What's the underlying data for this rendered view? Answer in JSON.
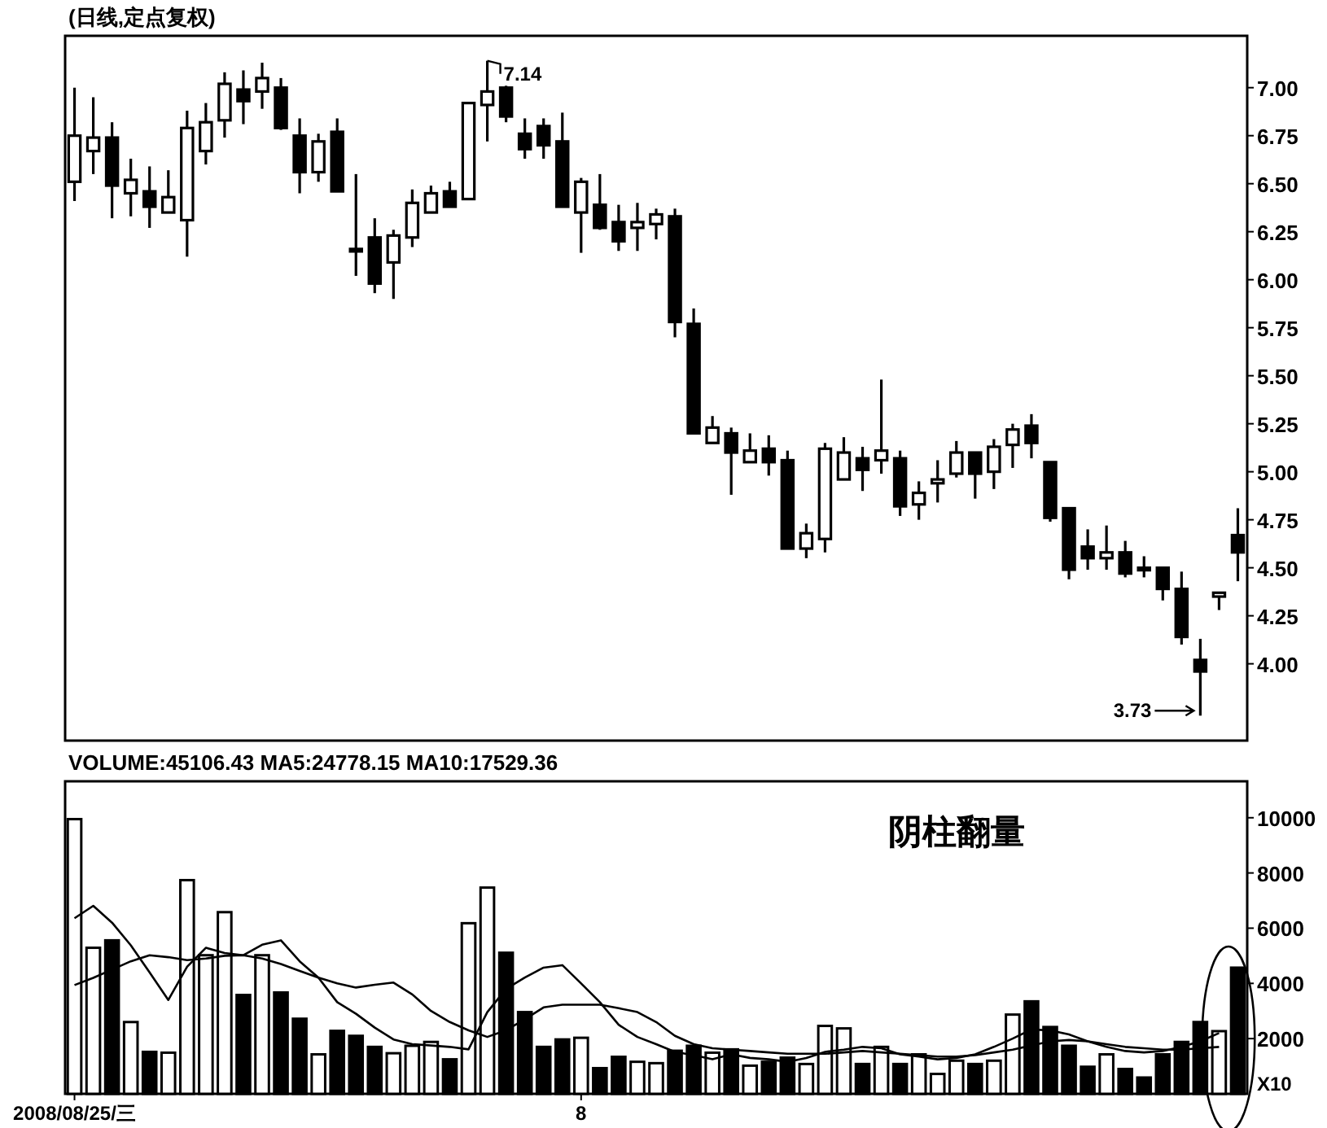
{
  "chart_data": [
    {
      "type": "candlestick",
      "title": "(日线,定点复权)",
      "categories": [
        null,
        null,
        null,
        null,
        null,
        null,
        null,
        null,
        null,
        null,
        null,
        null,
        null,
        null,
        null,
        null,
        null,
        null,
        null,
        null,
        null,
        null,
        null,
        null,
        null,
        null,
        null,
        null,
        null,
        null,
        null,
        null,
        null,
        null,
        null,
        null,
        null,
        null,
        null,
        null,
        null,
        null,
        null,
        null,
        null,
        null,
        null,
        null,
        null,
        null,
        null,
        null,
        null,
        null,
        null,
        null,
        null,
        null,
        null,
        null,
        null,
        null,
        null
      ],
      "ohlc": [
        [
          6.51,
          7.0,
          6.41,
          6.75
        ],
        [
          6.67,
          6.95,
          6.55,
          6.74
        ],
        [
          6.74,
          6.82,
          6.32,
          6.49
        ],
        [
          6.45,
          6.63,
          6.33,
          6.52
        ],
        [
          6.46,
          6.59,
          6.27,
          6.38
        ],
        [
          6.35,
          6.57,
          6.35,
          6.43
        ],
        [
          6.31,
          6.88,
          6.12,
          6.79
        ],
        [
          6.67,
          6.92,
          6.6,
          6.82
        ],
        [
          6.83,
          7.08,
          6.74,
          7.02
        ],
        [
          6.99,
          7.09,
          6.81,
          6.93
        ],
        [
          6.98,
          7.13,
          6.89,
          7.05
        ],
        [
          7.0,
          7.05,
          6.78,
          6.79
        ],
        [
          6.75,
          6.84,
          6.45,
          6.56
        ],
        [
          6.56,
          6.76,
          6.51,
          6.72
        ],
        [
          6.77,
          6.84,
          6.46,
          6.46
        ],
        [
          6.16,
          6.55,
          6.02,
          6.15
        ],
        [
          6.22,
          6.32,
          5.93,
          5.98
        ],
        [
          6.09,
          6.26,
          5.9,
          6.23
        ],
        [
          6.22,
          6.47,
          6.17,
          6.4
        ],
        [
          6.35,
          6.49,
          6.35,
          6.45
        ],
        [
          6.46,
          6.51,
          6.38,
          6.38
        ],
        [
          6.42,
          6.92,
          6.42,
          6.92
        ],
        [
          6.91,
          7.14,
          6.72,
          6.98
        ],
        [
          7.0,
          7.01,
          6.82,
          6.85
        ],
        [
          6.76,
          6.84,
          6.63,
          6.68
        ],
        [
          6.8,
          6.84,
          6.63,
          6.7
        ],
        [
          6.72,
          6.87,
          6.38,
          6.38
        ],
        [
          6.35,
          6.53,
          6.14,
          6.51
        ],
        [
          6.39,
          6.55,
          6.26,
          6.27
        ],
        [
          6.3,
          6.39,
          6.15,
          6.2
        ],
        [
          6.27,
          6.4,
          6.15,
          6.3
        ],
        [
          6.29,
          6.37,
          6.21,
          6.34
        ],
        [
          6.33,
          6.37,
          5.7,
          5.78
        ],
        [
          5.77,
          5.85,
          5.2,
          5.2
        ],
        [
          5.15,
          5.29,
          5.15,
          5.23
        ],
        [
          5.2,
          5.23,
          4.88,
          5.1
        ],
        [
          5.05,
          5.2,
          5.05,
          5.11
        ],
        [
          5.12,
          5.19,
          4.98,
          5.05
        ],
        [
          5.06,
          5.11,
          4.6,
          4.6
        ],
        [
          4.6,
          4.73,
          4.55,
          4.68
        ],
        [
          4.65,
          5.15,
          4.58,
          5.12
        ],
        [
          4.96,
          5.18,
          4.96,
          5.1
        ],
        [
          5.07,
          5.13,
          4.9,
          5.01
        ],
        [
          5.06,
          5.48,
          4.99,
          5.11
        ],
        [
          5.07,
          5.11,
          4.77,
          4.82
        ],
        [
          4.83,
          4.95,
          4.75,
          4.89
        ],
        [
          4.94,
          5.06,
          4.84,
          4.96
        ],
        [
          4.99,
          5.16,
          4.97,
          5.1
        ],
        [
          5.1,
          5.1,
          4.86,
          4.99
        ],
        [
          5.0,
          5.17,
          4.91,
          5.13
        ],
        [
          5.14,
          5.25,
          5.02,
          5.22
        ],
        [
          5.24,
          5.3,
          5.07,
          5.15
        ],
        [
          5.05,
          5.05,
          4.74,
          4.76
        ],
        [
          4.81,
          4.81,
          4.44,
          4.49
        ],
        [
          4.61,
          4.7,
          4.49,
          4.55
        ],
        [
          4.55,
          4.72,
          4.49,
          4.58
        ],
        [
          4.58,
          4.64,
          4.45,
          4.47
        ],
        [
          4.5,
          4.56,
          4.45,
          4.49
        ],
        [
          4.5,
          4.5,
          4.33,
          4.39
        ],
        [
          4.39,
          4.48,
          4.1,
          4.14
        ],
        [
          4.02,
          4.13,
          3.73,
          3.96
        ],
        [
          4.35,
          4.37,
          4.28,
          4.37
        ],
        [
          4.67,
          4.81,
          4.43,
          4.58
        ]
      ],
      "ylim": [
        3.6,
        7.27
      ],
      "yticks": [
        {
          "value": 4,
          "label": "4.00"
        },
        {
          "value": 4.25,
          "label": "4.25"
        },
        {
          "value": 4.5,
          "label": "4.50"
        },
        {
          "value": 4.75,
          "label": "4.75"
        },
        {
          "value": 5,
          "label": "5.00"
        },
        {
          "value": 5.25,
          "label": "5.25"
        },
        {
          "value": 5.5,
          "label": "5.50"
        },
        {
          "value": 5.75,
          "label": "5.75"
        },
        {
          "value": 6,
          "label": "6.00"
        },
        {
          "value": 6.25,
          "label": "6.25"
        },
        {
          "value": 6.5,
          "label": "6.50"
        },
        {
          "value": 6.75,
          "label": "6.75"
        },
        {
          "value": 7,
          "label": "7.00"
        }
      ],
      "tick_labels": "y",
      "annotations": [
        "7.14",
        "3.73"
      ]
    },
    {
      "type": "bar",
      "title": "VOLUME:45106.43 MA5:24778.15 MA10:17529.36",
      "categories": [
        "2008/08/25/三",
        null,
        null,
        null,
        null,
        null,
        null,
        null,
        null,
        null,
        null,
        null,
        null,
        null,
        null,
        null,
        null,
        null,
        null,
        null,
        null,
        null,
        null,
        null,
        null,
        null,
        null,
        "8",
        null,
        null,
        null,
        null,
        null,
        null,
        null,
        null,
        null,
        null,
        null,
        null,
        null,
        null,
        null,
        null,
        null,
        null,
        null,
        null,
        null,
        null,
        null,
        null,
        null,
        null,
        null,
        null,
        null,
        null,
        null,
        null,
        null,
        null,
        null
      ],
      "series": [
        {
          "type": "bar",
          "values": [
            9950,
            5290,
            5560,
            2600,
            1520,
            1490,
            7740,
            5020,
            6580,
            3580,
            5020,
            3670,
            2720,
            1430,
            2280,
            2100,
            1700,
            1470,
            1740,
            1880,
            1250,
            6180,
            7470,
            5110,
            2960,
            1700,
            1970,
            2030,
            930,
            1340,
            1160,
            1110,
            1560,
            1740,
            1490,
            1610,
            1020,
            1160,
            1310,
            1080,
            2460,
            2370,
            1080,
            1700,
            1080,
            1430,
            720,
            1200,
            1080,
            1200,
            2870,
            3350,
            2420,
            1740,
            980,
            1430,
            900,
            590,
            1430,
            1880,
            2600,
            2270,
            4570
          ],
          "colors": [
            "#ffffff",
            "#ffffff",
            "#000000",
            "#ffffff",
            "#000000",
            "#ffffff",
            "#ffffff",
            "#ffffff",
            "#ffffff",
            "#000000",
            "#ffffff",
            "#000000",
            "#000000",
            "#ffffff",
            "#000000",
            "#000000",
            "#000000",
            "#ffffff",
            "#ffffff",
            "#ffffff",
            "#000000",
            "#ffffff",
            "#ffffff",
            "#000000",
            "#000000",
            "#000000",
            "#000000",
            "#ffffff",
            "#000000",
            "#000000",
            "#ffffff",
            "#ffffff",
            "#000000",
            "#000000",
            "#ffffff",
            "#000000",
            "#ffffff",
            "#000000",
            "#000000",
            "#ffffff",
            "#ffffff",
            "#ffffff",
            "#000000",
            "#ffffff",
            "#000000",
            "#ffffff",
            "#ffffff",
            "#ffffff",
            "#000000",
            "#ffffff",
            "#ffffff",
            "#000000",
            "#000000",
            "#000000",
            "#000000",
            "#ffffff",
            "#000000",
            "#000000",
            "#000000",
            "#000000",
            "#000000",
            "#ffffff",
            "#000000"
          ]
        },
        {
          "type": "line",
          "color": "#000000",
          "values": [
            6360,
            6810,
            6200,
            5380,
            4400,
            3400,
            4600,
            5290,
            5100,
            5020,
            5400,
            5560,
            4800,
            4210,
            3320,
            2900,
            2400,
            1970,
            1800,
            1750,
            1700,
            1610,
            2960,
            3800,
            4210,
            4570,
            4660,
            4000,
            3320,
            2500,
            2060,
            1800,
            1520,
            1400,
            1250,
            1430,
            1300,
            1250,
            1160,
            1300,
            1520,
            1600,
            1700,
            1650,
            1430,
            1350,
            1250,
            1300,
            1430,
            1700,
            2000,
            2330,
            2300,
            2150,
            1900,
            1700,
            1550,
            1500,
            1550,
            1700,
            1900,
            2200,
            null
          ]
        },
        {
          "type": "line",
          "color": "#000000",
          "values": [
            3940,
            4200,
            4500,
            4800,
            5020,
            4950,
            4840,
            4900,
            5000,
            5020,
            4900,
            4700,
            4450,
            4210,
            4000,
            3850,
            3950,
            4030,
            3600,
            3000,
            2600,
            2300,
            2060,
            2300,
            2700,
            3130,
            3230,
            3230,
            3230,
            3100,
            2960,
            2600,
            2100,
            1800,
            1650,
            1600,
            1550,
            1500,
            1450,
            1450,
            1450,
            1500,
            1550,
            1500,
            1450,
            1400,
            1350,
            1350,
            1400,
            1500,
            1600,
            1750,
            1900,
            1950,
            1900,
            1800,
            1700,
            1650,
            1600,
            1600,
            1650,
            1700,
            null
          ]
        }
      ],
      "ylim": [
        0,
        11320
      ],
      "yticks": [
        2000,
        4000,
        6000,
        8000,
        10000
      ],
      "annotations": [
        "阴柱翻量",
        "X10"
      ]
    }
  ]
}
